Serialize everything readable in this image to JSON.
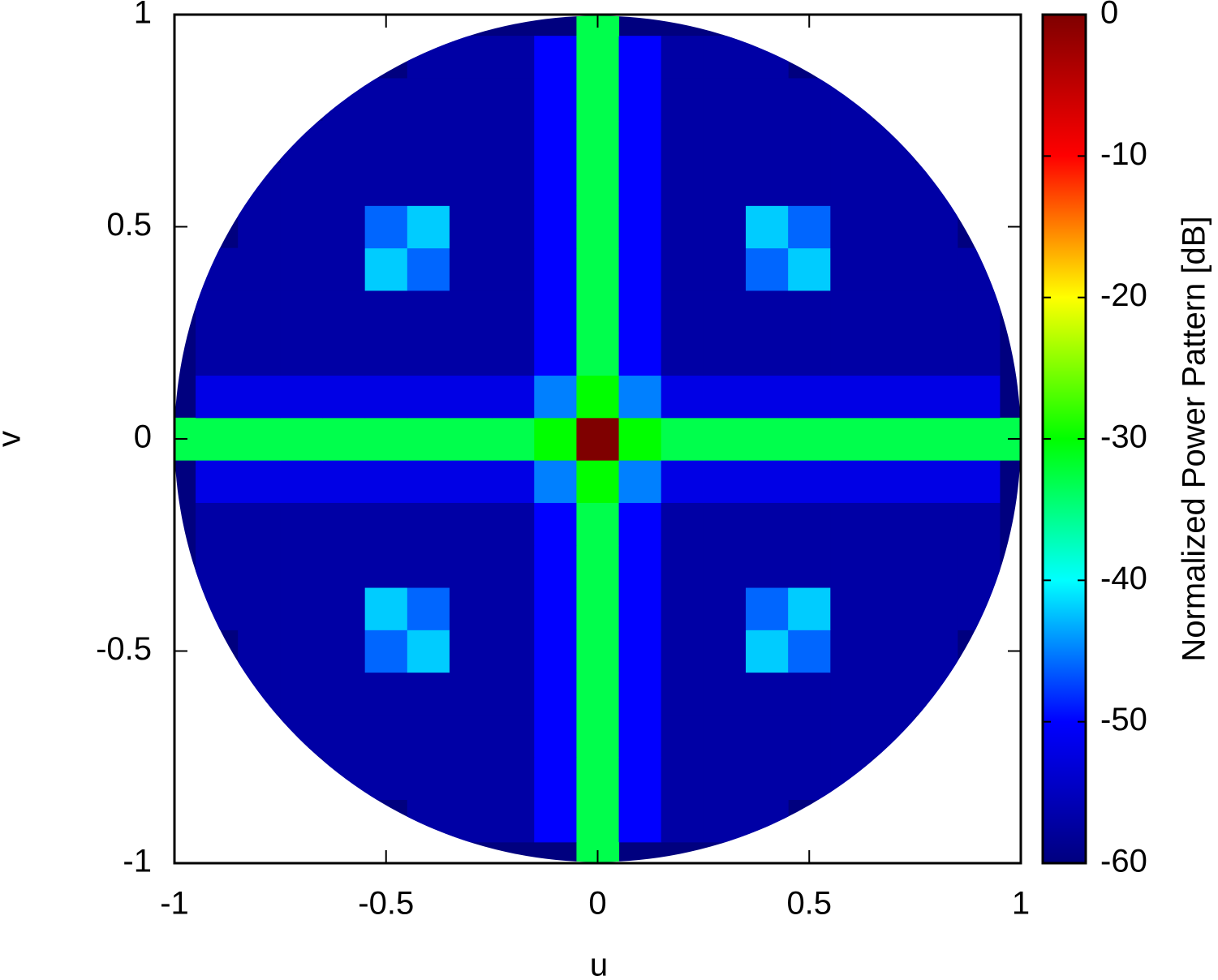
{
  "chart_data": {
    "type": "heatmap",
    "xlabel": "u",
    "ylabel": "v",
    "colorbar_label": "Normalized Power Pattern [dB]",
    "x": [
      -1,
      -0.9,
      -0.8,
      -0.7,
      -0.6,
      -0.5,
      -0.4,
      -0.3,
      -0.2,
      -0.1,
      0,
      0.1,
      0.2,
      0.3,
      0.4,
      0.5,
      0.6,
      0.7,
      0.8,
      0.9,
      1
    ],
    "y": [
      -1,
      -0.9,
      -0.8,
      -0.7,
      -0.6,
      -0.5,
      -0.4,
      -0.3,
      -0.2,
      -0.1,
      0,
      0.1,
      0.2,
      0.3,
      0.4,
      0.5,
      0.6,
      0.7,
      0.8,
      0.9,
      1
    ],
    "z": [
      [
        null,
        null,
        null,
        null,
        null,
        null,
        null,
        null,
        null,
        null,
        -33,
        null,
        null,
        null,
        null,
        null,
        null,
        null,
        null,
        null,
        null
      ],
      [
        null,
        null,
        null,
        null,
        null,
        null,
        -57,
        -57,
        -57,
        -50,
        -33,
        -50,
        -57,
        -57,
        -57,
        null,
        null,
        null,
        null,
        null,
        null
      ],
      [
        null,
        null,
        null,
        null,
        -57,
        -57,
        -57,
        -57,
        -57,
        -50,
        -33,
        -50,
        -57,
        -57,
        -57,
        -57,
        -57,
        null,
        null,
        null,
        null
      ],
      [
        null,
        null,
        null,
        -57,
        -57,
        -57,
        -57,
        -57,
        -57,
        -50,
        -33,
        -50,
        -57,
        -57,
        -57,
        -57,
        -57,
        -57,
        null,
        null,
        null
      ],
      [
        null,
        null,
        -57,
        -57,
        -57,
        -57,
        -57,
        -57,
        -57,
        -50,
        -33,
        -50,
        -57,
        -57,
        -57,
        -57,
        -57,
        -57,
        -57,
        null,
        null
      ],
      [
        null,
        null,
        -57,
        -57,
        -57,
        -46,
        -42,
        -57,
        -57,
        -50,
        -33,
        -50,
        -57,
        -57,
        -42,
        -46,
        -57,
        -57,
        -57,
        null,
        null
      ],
      [
        null,
        -57,
        -57,
        -57,
        -57,
        -42,
        -46,
        -57,
        -57,
        -50,
        -33,
        -50,
        -57,
        -57,
        -46,
        -42,
        -57,
        -57,
        -57,
        -57,
        null
      ],
      [
        null,
        -57,
        -57,
        -57,
        -57,
        -57,
        -57,
        -57,
        -57,
        -50,
        -33,
        -50,
        -57,
        -57,
        -57,
        -57,
        -57,
        -57,
        -57,
        -57,
        null
      ],
      [
        null,
        -57,
        -57,
        -57,
        -57,
        -57,
        -57,
        -57,
        -57,
        -50,
        -33,
        -50,
        -57,
        -57,
        -57,
        -57,
        -57,
        -57,
        -57,
        -57,
        null
      ],
      [
        null,
        -52,
        -52,
        -52,
        -52,
        -52,
        -52,
        -52,
        -52,
        -45,
        -30,
        -45,
        -52,
        -52,
        -52,
        -52,
        -52,
        -52,
        -52,
        -52,
        null
      ],
      [
        -33,
        -33,
        -33,
        -33,
        -33,
        -33,
        -33,
        -33,
        -33,
        -30,
        0,
        -30,
        -33,
        -33,
        -33,
        -33,
        -33,
        -33,
        -33,
        -33,
        -33
      ],
      [
        null,
        -52,
        -52,
        -52,
        -52,
        -52,
        -52,
        -52,
        -52,
        -45,
        -30,
        -45,
        -52,
        -52,
        -52,
        -52,
        -52,
        -52,
        -52,
        -52,
        null
      ],
      [
        null,
        -57,
        -57,
        -57,
        -57,
        -57,
        -57,
        -57,
        -57,
        -50,
        -33,
        -50,
        -57,
        -57,
        -57,
        -57,
        -57,
        -57,
        -57,
        -57,
        null
      ],
      [
        null,
        -57,
        -57,
        -57,
        -57,
        -57,
        -57,
        -57,
        -57,
        -50,
        -33,
        -50,
        -57,
        -57,
        -57,
        -57,
        -57,
        -57,
        -57,
        -57,
        null
      ],
      [
        null,
        -57,
        -57,
        -57,
        -57,
        -42,
        -46,
        -57,
        -57,
        -50,
        -33,
        -50,
        -57,
        -57,
        -46,
        -42,
        -57,
        -57,
        -57,
        -57,
        null
      ],
      [
        null,
        null,
        -57,
        -57,
        -57,
        -46,
        -42,
        -57,
        -57,
        -50,
        -33,
        -50,
        -57,
        -57,
        -42,
        -46,
        -57,
        -57,
        -57,
        null,
        null
      ],
      [
        null,
        null,
        -57,
        -57,
        -57,
        -57,
        -57,
        -57,
        -57,
        -50,
        -33,
        -50,
        -57,
        -57,
        -57,
        -57,
        -57,
        -57,
        -57,
        null,
        null
      ],
      [
        null,
        null,
        null,
        -57,
        -57,
        -57,
        -57,
        -57,
        -57,
        -50,
        -33,
        -50,
        -57,
        -57,
        -57,
        -57,
        -57,
        -57,
        null,
        null,
        null
      ],
      [
        null,
        null,
        null,
        null,
        -57,
        -57,
        -57,
        -57,
        -57,
        -50,
        -33,
        -50,
        -57,
        -57,
        -57,
        -57,
        -57,
        null,
        null,
        null,
        null
      ],
      [
        null,
        null,
        null,
        null,
        null,
        null,
        -57,
        -57,
        -57,
        -50,
        -33,
        -50,
        -57,
        -57,
        -57,
        null,
        null,
        null,
        null,
        null,
        null
      ],
      [
        null,
        null,
        null,
        null,
        null,
        null,
        null,
        null,
        null,
        null,
        -33,
        null,
        null,
        null,
        null,
        null,
        null,
        null,
        null,
        null,
        null
      ]
    ],
    "xlim": [
      -1,
      1
    ],
    "ylim": [
      -1,
      1
    ],
    "xticks": [
      -1,
      -0.5,
      0,
      0.5,
      1
    ],
    "yticks": [
      -1,
      -0.5,
      0,
      0.5,
      1
    ],
    "clim": [
      -60,
      0
    ],
    "cticks": [
      -60,
      -50,
      -40,
      -30,
      -20,
      -10,
      0
    ],
    "colorscale": [
      "#00007f",
      "#0000ff",
      "#00ffff",
      "#00ff00",
      "#ffff00",
      "#ff0000",
      "#7f0000"
    ]
  }
}
